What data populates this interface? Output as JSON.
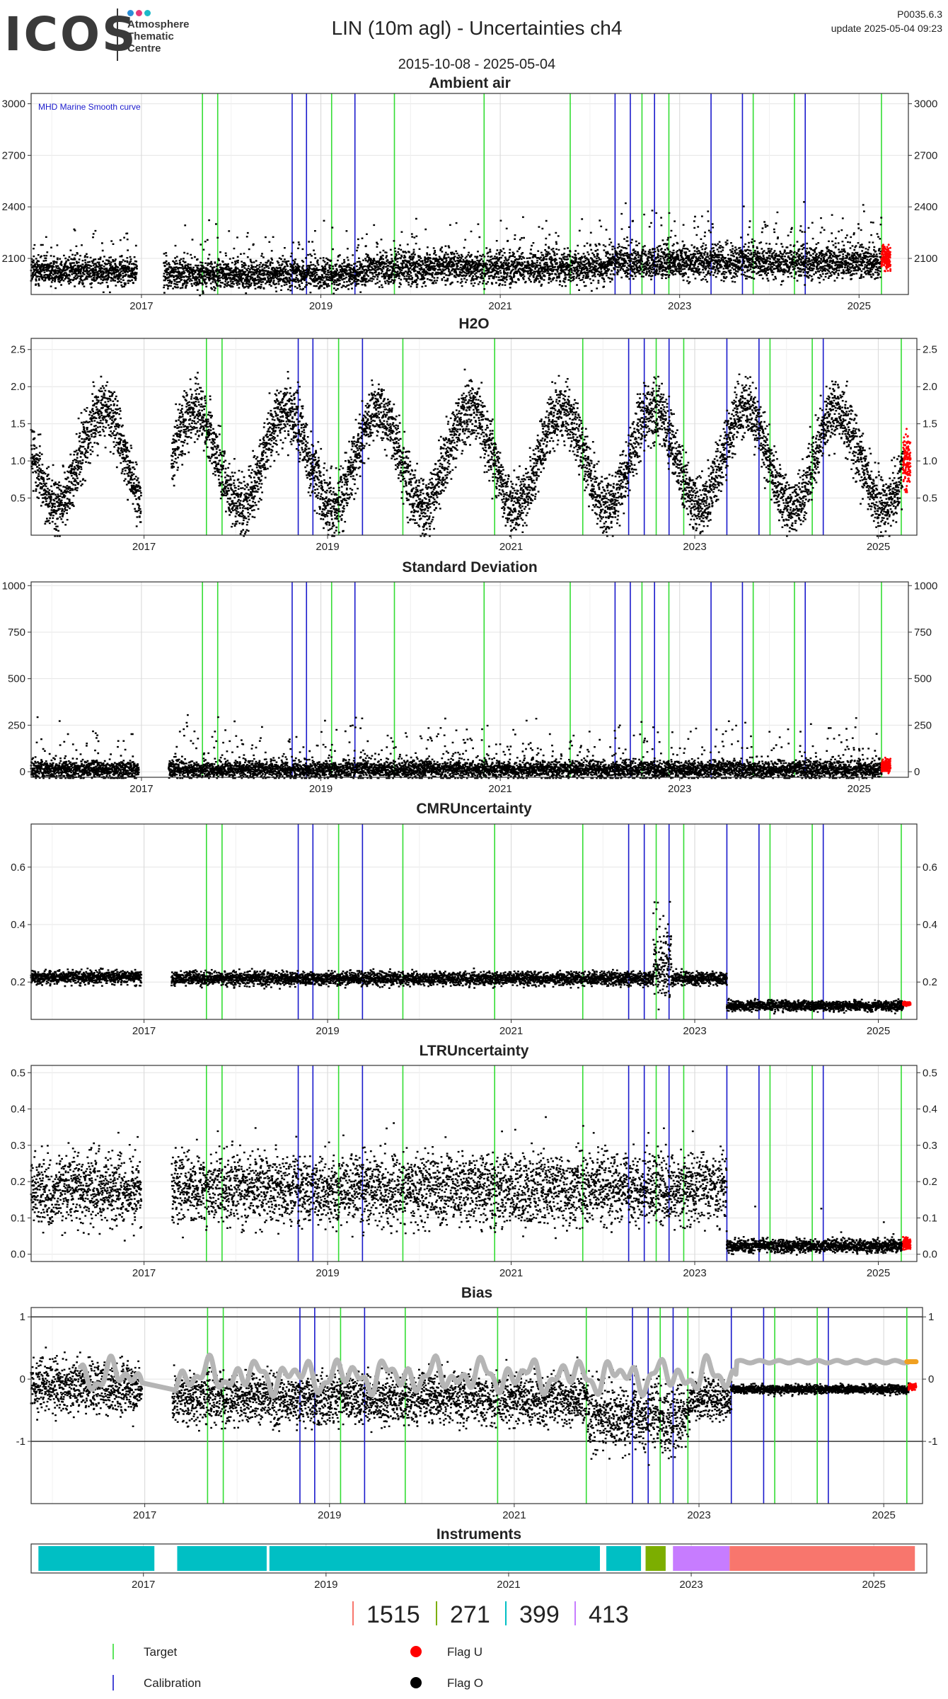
{
  "header": {
    "logo": "ICOS",
    "logo_sub": [
      "Atmosphere",
      "Thematic",
      "Centre"
    ],
    "logo_dot_colors": [
      "#2a8fd8",
      "#e43a7a",
      "#1cb9c9"
    ],
    "title": "LIN  (10m agl) - Uncertainties ch4",
    "date_range": "2015-10-08 - 2025-05-04",
    "version": "P0035.6.3",
    "update": "update  2025-05-04 09:23"
  },
  "colors": {
    "target": "#33dd33",
    "calibration": "#1a1acc",
    "flag_u": "#ff0000",
    "flag_o": "#000000",
    "smooth": "#b5b5b5",
    "smooth_recent": "#f0a020"
  },
  "events": {
    "target_dates": [
      2017.68,
      2017.85,
      2019.12,
      2019.82,
      2020.82,
      2021.78,
      2022.58,
      2022.88,
      2023.82,
      2024.28,
      2025.25
    ],
    "calibration_dates": [
      2018.68,
      2018.84,
      2019.38,
      2022.28,
      2022.45,
      2022.72,
      2023.35,
      2023.7,
      2024.4
    ]
  },
  "chart_data": [
    {
      "type": "scatter",
      "title": "Ambient air",
      "annotation": "MHD Marine Smooth curve",
      "x_ticks": [
        "2017",
        "2019",
        "2021",
        "2023",
        "2025"
      ],
      "x_tick_values": [
        2017,
        2019,
        2021,
        2023,
        2025
      ],
      "xlim": [
        2015.77,
        2025.55
      ],
      "y_ticks": [
        2100,
        2400,
        2700,
        3000
      ],
      "ylim": [
        1890,
        3060
      ],
      "gaps": [
        [
          2016.95,
          2017.25
        ]
      ],
      "segments": [
        {
          "from": 2015.77,
          "to": 2016.95,
          "base": 2030,
          "spread": 70,
          "spike_rate": 0.25,
          "spike_max": 350
        },
        {
          "from": 2017.25,
          "to": 2019.5,
          "base": 2010,
          "spread": 70,
          "spike_rate": 0.25,
          "spike_max": 380
        },
        {
          "from": 2019.5,
          "to": 2022.2,
          "base": 2050,
          "spread": 80,
          "spike_rate": 0.28,
          "spike_max": 350
        },
        {
          "from": 2022.2,
          "to": 2025.25,
          "base": 2080,
          "spread": 80,
          "spike_rate": 0.3,
          "spike_max": 400
        }
      ],
      "flag_u": {
        "from": 2025.25,
        "to": 2025.35,
        "base": 2100,
        "spread": 120,
        "max": 2320
      }
    },
    {
      "type": "scatter",
      "title": "H2O",
      "x_ticks": [
        "2017",
        "2019",
        "2021",
        "2023",
        "2025"
      ],
      "x_tick_values": [
        2017,
        2019,
        2021,
        2023,
        2025
      ],
      "xlim": [
        2015.77,
        2025.42
      ],
      "y_ticks": [
        0.5,
        1.0,
        1.5,
        2.0,
        2.5
      ],
      "ylim": [
        0.0,
        2.65
      ],
      "gaps": [
        [
          2016.97,
          2017.3
        ]
      ],
      "seasonal": {
        "mean": 1.05,
        "amp": 0.65,
        "peak_phase": 0.55,
        "spread": 0.35
      },
      "flag_u": {
        "from": 2025.27,
        "to": 2025.35,
        "base": 1.0,
        "spread": 0.6,
        "max": 1.8
      }
    },
    {
      "type": "scatter",
      "title": "Standard Deviation",
      "x_ticks": [
        "2017",
        "2019",
        "2021",
        "2023",
        "2025"
      ],
      "x_tick_values": [
        2017,
        2019,
        2021,
        2023,
        2025
      ],
      "xlim": [
        2015.77,
        2025.55
      ],
      "y_ticks": [
        0,
        250,
        500,
        750,
        1000
      ],
      "ylim": [
        -30,
        1020
      ],
      "gaps": [
        [
          2016.97,
          2017.3
        ]
      ],
      "segments": [
        {
          "from": 2015.77,
          "to": 2025.25,
          "base": 15,
          "spread": 40,
          "spike_rate": 0.25,
          "spike_max": 300
        }
      ],
      "flag_u": {
        "from": 2025.25,
        "to": 2025.35,
        "base": 30,
        "spread": 60,
        "max": 200
      }
    },
    {
      "type": "scatter",
      "title": "CMRUncertainty",
      "x_ticks": [
        "2017",
        "2019",
        "2021",
        "2023",
        "2025"
      ],
      "x_tick_values": [
        2017,
        2019,
        2021,
        2023,
        2025
      ],
      "xlim": [
        2015.77,
        2025.42
      ],
      "y_ticks": [
        0.2,
        0.4,
        0.6
      ],
      "ylim": [
        0.07,
        0.75
      ],
      "gaps": [
        [
          2016.97,
          2017.3
        ]
      ],
      "segments": [
        {
          "from": 2015.77,
          "to": 2016.97,
          "base": 0.22,
          "spread": 0.02,
          "spike_rate": 0.0,
          "spike_max": 0
        },
        {
          "from": 2017.3,
          "to": 2022.55,
          "base": 0.215,
          "spread": 0.02,
          "spike_rate": 0.0,
          "spike_max": 0
        },
        {
          "from": 2022.55,
          "to": 2022.75,
          "base": 0.25,
          "spread": 0.1,
          "spike_rate": 0.3,
          "spike_max": 0.45
        },
        {
          "from": 2022.75,
          "to": 2023.35,
          "base": 0.215,
          "spread": 0.02,
          "spike_rate": 0.0,
          "spike_max": 0
        },
        {
          "from": 2023.35,
          "to": 2025.27,
          "base": 0.12,
          "spread": 0.015,
          "spike_rate": 0.0,
          "spike_max": 0
        }
      ],
      "flag_u": {
        "from": 2025.27,
        "to": 2025.35,
        "base": 0.125,
        "spread": 0.01,
        "max": 0.14
      }
    },
    {
      "type": "scatter",
      "title": "LTRUncertainty",
      "x_ticks": [
        "2017",
        "2019",
        "2021",
        "2023",
        "2025"
      ],
      "x_tick_values": [
        2017,
        2019,
        2021,
        2023,
        2025
      ],
      "xlim": [
        2015.77,
        2025.42
      ],
      "y_ticks": [
        0.0,
        0.1,
        0.2,
        0.3,
        0.4,
        0.5
      ],
      "ylim": [
        -0.02,
        0.52
      ],
      "gaps": [
        [
          2016.97,
          2017.3
        ]
      ],
      "segments": [
        {
          "from": 2015.77,
          "to": 2023.35,
          "base": 0.18,
          "spread": 0.08,
          "spike_rate": 0.08,
          "spike_max": 0.22
        },
        {
          "from": 2023.35,
          "to": 2025.27,
          "base": 0.025,
          "spread": 0.015,
          "spike_rate": 0.02,
          "spike_max": 0.18
        }
      ],
      "flag_u": {
        "from": 2025.27,
        "to": 2025.35,
        "base": 0.03,
        "spread": 0.03,
        "max": 0.08
      }
    },
    {
      "type": "scatter",
      "title": "Bias",
      "x_ticks": [
        "2017",
        "2019",
        "2021",
        "2023",
        "2025"
      ],
      "x_tick_values": [
        2017,
        2019,
        2021,
        2023,
        2025
      ],
      "xlim": [
        2015.77,
        2025.42
      ],
      "y_ticks": [
        -1,
        0,
        1
      ],
      "ylim": [
        -2.0,
        1.15
      ],
      "gaps": [
        [
          2016.97,
          2017.3
        ]
      ],
      "reference_lines": [
        -1,
        1
      ],
      "segments": [
        {
          "from": 2015.77,
          "to": 2016.97,
          "base": -0.1,
          "spread": 0.35,
          "spike_rate": 0.02,
          "spike_max": 0.8
        },
        {
          "from": 2017.3,
          "to": 2021.8,
          "base": -0.3,
          "spread": 0.35,
          "spike_rate": 0.02,
          "spike_max": 0.6
        },
        {
          "from": 2021.8,
          "to": 2022.9,
          "base": -0.6,
          "spread": 0.45,
          "spike_rate": 0.05,
          "spike_max": 0.9
        },
        {
          "from": 2022.9,
          "to": 2023.35,
          "base": -0.3,
          "spread": 0.3,
          "spike_rate": 0.02,
          "spike_max": 0.6
        },
        {
          "from": 2023.35,
          "to": 2025.27,
          "base": -0.15,
          "spread": 0.06,
          "spike_rate": 0.0,
          "spike_max": 0
        }
      ],
      "smooth_curve": {
        "from": 2016.3,
        "to": 2025.27,
        "mean": 0.05,
        "amp": 0.25,
        "recent_value": 0.28
      },
      "flag_u": {
        "from": 2025.27,
        "to": 2025.35,
        "base": -0.12,
        "spread": 0.08,
        "max": 0.0
      }
    },
    {
      "type": "bar",
      "title": "Instruments",
      "x_ticks": [
        "2017",
        "2019",
        "2021",
        "2023",
        "2025"
      ],
      "x_tick_values": [
        2017,
        2019,
        2021,
        2023,
        2025
      ],
      "xlim": [
        2015.77,
        2025.58
      ],
      "periods": [
        {
          "from": 2015.85,
          "to": 2017.12,
          "instrument": "399"
        },
        {
          "from": 2017.37,
          "to": 2018.35,
          "instrument": "399"
        },
        {
          "from": 2018.38,
          "to": 2022.0,
          "instrument": "399"
        },
        {
          "from": 2022.07,
          "to": 2022.45,
          "instrument": "399"
        },
        {
          "from": 2022.5,
          "to": 2022.72,
          "instrument": "271"
        },
        {
          "from": 2022.8,
          "to": 2023.42,
          "instrument": "413"
        },
        {
          "from": 2023.42,
          "to": 2025.45,
          "instrument": "1515"
        }
      ]
    }
  ],
  "instrument_legend": [
    {
      "id": "1515",
      "color": "#f8766d"
    },
    {
      "id": "271",
      "color": "#7cae00"
    },
    {
      "id": "399",
      "color": "#00bfc4"
    },
    {
      "id": "413",
      "color": "#c77cff"
    }
  ],
  "legend": {
    "target": "Target",
    "calibration": "Calibration",
    "flag_u": "Flag U",
    "flag_o": "Flag O"
  }
}
